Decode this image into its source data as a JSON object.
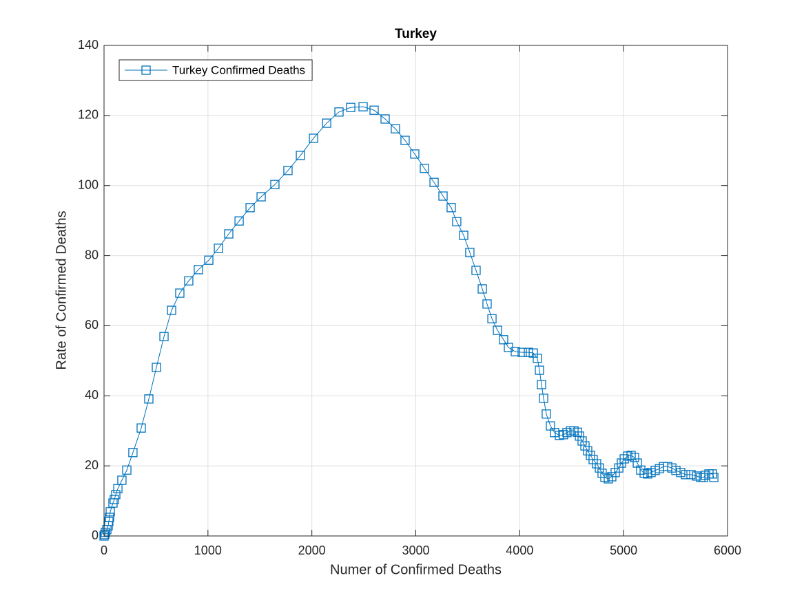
{
  "chart_data": {
    "type": "line",
    "title": "Turkey",
    "x_label": "Numer of Confirmed Deaths",
    "y_label": "Rate of Confirmed Deaths",
    "xlim": [
      0,
      6000
    ],
    "ylim": [
      0,
      140
    ],
    "xticks": [
      0,
      1000,
      2000,
      3000,
      4000,
      5000,
      6000
    ],
    "yticks": [
      0,
      20,
      40,
      60,
      80,
      100,
      120,
      140
    ],
    "grid": true,
    "legend_position": "top-left",
    "marker": "square",
    "x": [
      0,
      7,
      13,
      27,
      40,
      46,
      53,
      60,
      86,
      99,
      113,
      133,
      172,
      219,
      278,
      358,
      431,
      504,
      577,
      650,
      729,
      815,
      908,
      1008,
      1101,
      1200,
      1300,
      1406,
      1512,
      1644,
      1770,
      1890,
      2016,
      2142,
      2261,
      2374,
      2493,
      2599,
      2705,
      2804,
      2897,
      2990,
      3083,
      3176,
      3262,
      3341,
      3394,
      3461,
      3520,
      3580,
      3640,
      3686,
      3733,
      3786,
      3845,
      3892,
      3958,
      4024,
      4084,
      4131,
      4170,
      4190,
      4210,
      4230,
      4256,
      4296,
      4336,
      4382,
      4422,
      4455,
      4489,
      4522,
      4555,
      4575,
      4601,
      4628,
      4654,
      4681,
      4707,
      4740,
      4767,
      4793,
      4820,
      4853,
      4886,
      4919,
      4953,
      4979,
      5006,
      5039,
      5072,
      5105,
      5132,
      5165,
      5198,
      5231,
      5264,
      5304,
      5344,
      5384,
      5424,
      5464,
      5503,
      5549,
      5596,
      5649,
      5702,
      5742,
      5768,
      5788,
      5821,
      5854,
      5868
    ],
    "series": [
      {
        "name": "Turkey Confirmed Deaths",
        "color": "#0072bd",
        "values": [
          0,
          0.4,
          1,
          1.8,
          2.9,
          4.1,
          5.3,
          6.9,
          9.4,
          10.4,
          11.8,
          13.5,
          15.9,
          18.8,
          23.8,
          30.8,
          39.1,
          48.1,
          56.9,
          64.4,
          69.3,
          72.8,
          76.0,
          78.7,
          82.1,
          86.2,
          89.9,
          93.7,
          96.8,
          100.3,
          104.3,
          108.6,
          113.5,
          117.8,
          121.0,
          122.3,
          122.5,
          121.5,
          119.0,
          116.2,
          112.9,
          109.0,
          104.9,
          100.9,
          97.0,
          93.7,
          89.7,
          85.8,
          80.9,
          75.8,
          70.5,
          66.2,
          62.0,
          58.7,
          56.0,
          53.8,
          52.6,
          52.4,
          52.4,
          52.2,
          50.7,
          47.3,
          43.2,
          39.3,
          34.8,
          31.4,
          29.5,
          28.7,
          28.9,
          29.5,
          30.0,
          30.0,
          29.6,
          28.5,
          27.1,
          25.7,
          24.3,
          23.0,
          21.8,
          20.6,
          19.4,
          17.9,
          16.7,
          16.3,
          16.9,
          18.1,
          19.4,
          20.8,
          22.0,
          22.8,
          23.0,
          22.4,
          20.8,
          18.8,
          17.9,
          17.7,
          18.1,
          18.7,
          19.2,
          19.8,
          19.8,
          19.4,
          18.7,
          18.1,
          17.5,
          17.5,
          17.1,
          16.7,
          16.7,
          17.3,
          17.7,
          17.7,
          16.7
        ]
      }
    ]
  }
}
